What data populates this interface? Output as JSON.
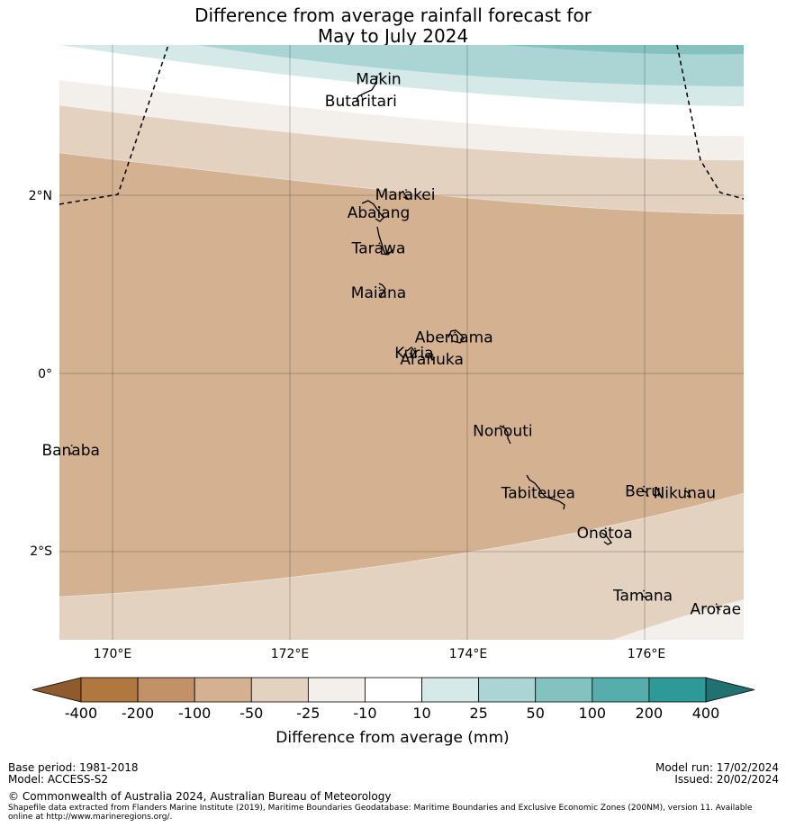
{
  "title": {
    "line1": "Difference from average rainfall forecast for",
    "line2": "May to July 2024"
  },
  "axes": {
    "lon_ticks": [
      "170°E",
      "172°E",
      "174°E",
      "176°E"
    ],
    "lat_ticks": [
      "2°N",
      "0°",
      "2°S"
    ]
  },
  "islands": [
    {
      "name": "Makin",
      "lon": 173.0,
      "lat": 3.3
    },
    {
      "name": "Butaritari",
      "lon": 172.8,
      "lat": 3.05
    },
    {
      "name": "Marakei",
      "lon": 173.3,
      "lat": 2.0
    },
    {
      "name": "Abaiang",
      "lon": 173.0,
      "lat": 1.8
    },
    {
      "name": "Tarawa",
      "lon": 173.0,
      "lat": 1.4
    },
    {
      "name": "Maiana",
      "lon": 173.0,
      "lat": 0.9
    },
    {
      "name": "Abemama",
      "lon": 173.85,
      "lat": 0.4
    },
    {
      "name": "Kuria",
      "lon": 173.4,
      "lat": 0.22
    },
    {
      "name": "Aranuka",
      "lon": 173.6,
      "lat": 0.15
    },
    {
      "name": "Nonouti",
      "lon": 174.4,
      "lat": -0.65
    },
    {
      "name": "Banaba",
      "lon": 169.53,
      "lat": -0.87
    },
    {
      "name": "Tabiteuea",
      "lon": 174.8,
      "lat": -1.35
    },
    {
      "name": "Beru",
      "lon": 175.98,
      "lat": -1.33
    },
    {
      "name": "Nikunau",
      "lon": 176.45,
      "lat": -1.35
    },
    {
      "name": "Onotoa",
      "lon": 175.55,
      "lat": -1.8
    },
    {
      "name": "Tamana",
      "lon": 175.98,
      "lat": -2.5
    },
    {
      "name": "Arorae",
      "lon": 176.8,
      "lat": -2.65
    }
  ],
  "colorbar": {
    "ticks": [
      "-400",
      "-200",
      "-100",
      "-50",
      "-25",
      "-10",
      "10",
      "25",
      "50",
      "100",
      "200",
      "400"
    ],
    "colors": [
      "#b0773e",
      "#c39167",
      "#d4b291",
      "#e4d2c1",
      "#f3efea",
      "#ffffff",
      "#d5e9e8",
      "#abd5d4",
      "#84c2c0",
      "#55aeac",
      "#2e9a97"
    ],
    "under_color": "#8f5a2c",
    "over_color": "#1f7270",
    "label": "Difference from average (mm)"
  },
  "footer": {
    "base_period": "Base period: 1981-2018",
    "model": "Model: ACCESS-S2",
    "model_run": "Model run: 17/02/2024",
    "issued": "Issued: 20/02/2024",
    "copyright": "© Commonwealth of Australia 2024, Australian Bureau of Meteorology",
    "shapefile_line1": "Shapefile data extracted from Flanders Marine Institute (2019), Maritime Boundaries Geodatabase: Maritime Boundaries and Exclusive Economic Zones (200NM), version 11. Available",
    "shapefile_line2": "online at http://www.marineregions.org/."
  }
}
